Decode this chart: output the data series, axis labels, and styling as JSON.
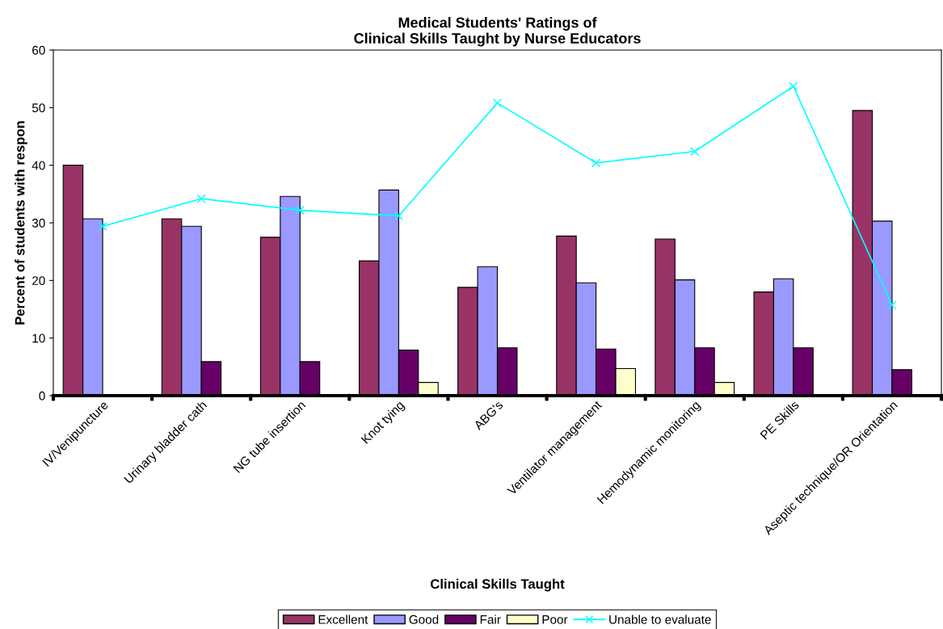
{
  "chart_data": {
    "type": "bar",
    "title": "Medical Students' Ratings of\nClinical Skills Taught by Nurse Educators",
    "xlabel": "Clinical Skills Taught",
    "ylabel": "Percent of students with respon",
    "categories": [
      "IV/Venipuncture",
      "Urinary bladder cath",
      "NG tube insertion",
      "Knot tying",
      "ABG's",
      "Ventilator management",
      "Hemodynamic monitoring",
      "PE Skills",
      "Aseptic technique/OR Orientation"
    ],
    "series": [
      {
        "name": "Excellent",
        "color": "#993366",
        "values": [
          40.0,
          30.7,
          27.5,
          23.4,
          18.8,
          27.7,
          27.2,
          18.0,
          49.5
        ]
      },
      {
        "name": "Good",
        "color": "#9999ff",
        "values": [
          30.7,
          29.4,
          34.6,
          35.7,
          22.4,
          19.6,
          20.1,
          20.3,
          30.3
        ]
      },
      {
        "name": "Fair",
        "color": "#660066",
        "values": [
          null,
          5.9,
          5.9,
          7.9,
          8.3,
          8.1,
          8.3,
          8.3,
          4.5
        ]
      },
      {
        "name": "Poor",
        "color": "#ffffcc",
        "values": [
          null,
          null,
          null,
          2.3,
          null,
          4.7,
          2.3,
          null,
          null
        ]
      },
      {
        "name": "Unable to evaluate",
        "color": "#00ffff",
        "type": "line",
        "marker": "cross",
        "values": [
          29.4,
          34.2,
          32.2,
          31.2,
          50.8,
          40.4,
          42.4,
          53.7,
          15.7
        ]
      }
    ],
    "ylim": [
      0,
      60
    ],
    "yticks": [
      0,
      10,
      20,
      30,
      40,
      50,
      60
    ],
    "grid": false,
    "legend": "bottom"
  }
}
